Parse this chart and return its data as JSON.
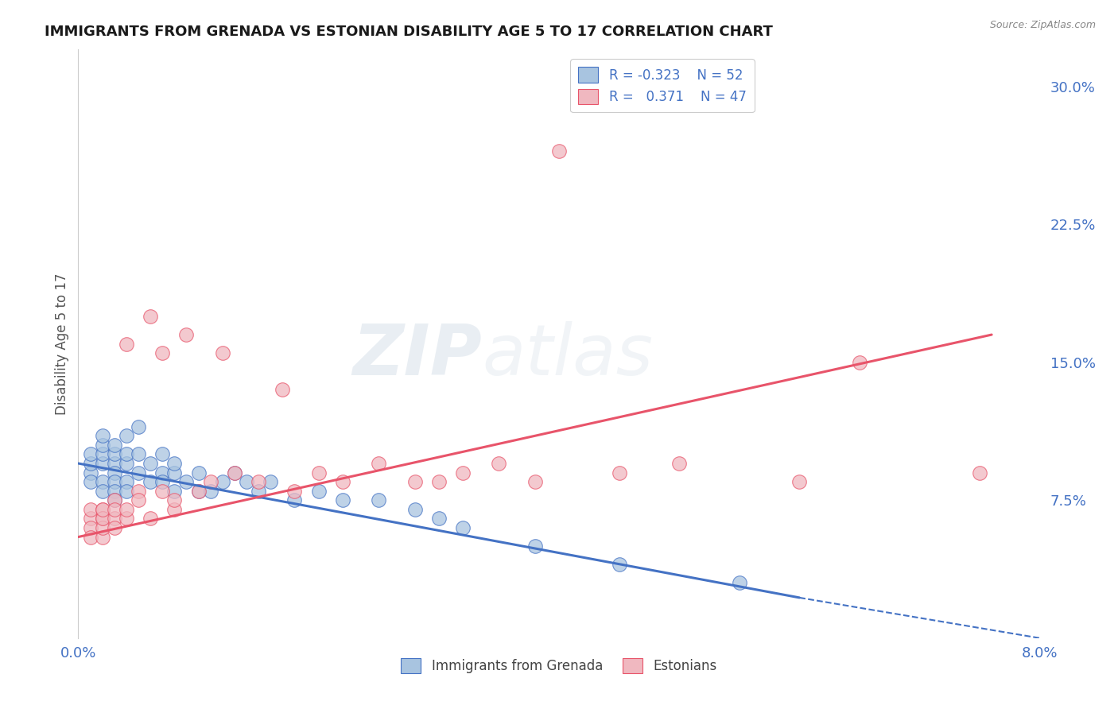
{
  "title": "IMMIGRANTS FROM GRENADA VS ESTONIAN DISABILITY AGE 5 TO 17 CORRELATION CHART",
  "source_text": "Source: ZipAtlas.com",
  "ylabel": "Disability Age 5 to 17",
  "xlim": [
    0.0,
    0.08
  ],
  "ylim": [
    0.0,
    0.32
  ],
  "xtick_positions": [
    0.0,
    0.08
  ],
  "xtick_labels": [
    "0.0%",
    "8.0%"
  ],
  "ytick_values_right": [
    0.075,
    0.15,
    0.225,
    0.3
  ],
  "ytick_labels_right": [
    "7.5%",
    "15.0%",
    "22.5%",
    "30.0%"
  ],
  "blue_R": -0.323,
  "blue_N": 52,
  "pink_R": 0.371,
  "pink_N": 47,
  "blue_scatter_x": [
    0.001,
    0.001,
    0.001,
    0.001,
    0.002,
    0.002,
    0.002,
    0.002,
    0.002,
    0.002,
    0.003,
    0.003,
    0.003,
    0.003,
    0.003,
    0.003,
    0.003,
    0.004,
    0.004,
    0.004,
    0.004,
    0.004,
    0.005,
    0.005,
    0.005,
    0.006,
    0.006,
    0.007,
    0.007,
    0.007,
    0.008,
    0.008,
    0.008,
    0.009,
    0.01,
    0.01,
    0.011,
    0.012,
    0.013,
    0.014,
    0.015,
    0.016,
    0.018,
    0.02,
    0.022,
    0.025,
    0.028,
    0.03,
    0.032,
    0.038,
    0.045,
    0.055
  ],
  "blue_scatter_y": [
    0.09,
    0.095,
    0.1,
    0.085,
    0.095,
    0.1,
    0.085,
    0.08,
    0.105,
    0.11,
    0.095,
    0.09,
    0.085,
    0.1,
    0.08,
    0.075,
    0.105,
    0.095,
    0.085,
    0.1,
    0.11,
    0.08,
    0.09,
    0.1,
    0.115,
    0.085,
    0.095,
    0.09,
    0.1,
    0.085,
    0.09,
    0.08,
    0.095,
    0.085,
    0.09,
    0.08,
    0.08,
    0.085,
    0.09,
    0.085,
    0.08,
    0.085,
    0.075,
    0.08,
    0.075,
    0.075,
    0.07,
    0.065,
    0.06,
    0.05,
    0.04,
    0.03
  ],
  "pink_scatter_x": [
    0.001,
    0.001,
    0.001,
    0.001,
    0.002,
    0.002,
    0.002,
    0.002,
    0.002,
    0.002,
    0.003,
    0.003,
    0.003,
    0.003,
    0.004,
    0.004,
    0.004,
    0.005,
    0.005,
    0.006,
    0.006,
    0.007,
    0.007,
    0.008,
    0.008,
    0.009,
    0.01,
    0.011,
    0.012,
    0.013,
    0.015,
    0.017,
    0.018,
    0.02,
    0.022,
    0.025,
    0.028,
    0.03,
    0.032,
    0.035,
    0.038,
    0.04,
    0.045,
    0.05,
    0.06,
    0.065,
    0.075
  ],
  "pink_scatter_y": [
    0.065,
    0.07,
    0.06,
    0.055,
    0.07,
    0.065,
    0.055,
    0.06,
    0.065,
    0.07,
    0.075,
    0.065,
    0.07,
    0.06,
    0.16,
    0.065,
    0.07,
    0.08,
    0.075,
    0.175,
    0.065,
    0.08,
    0.155,
    0.07,
    0.075,
    0.165,
    0.08,
    0.085,
    0.155,
    0.09,
    0.085,
    0.135,
    0.08,
    0.09,
    0.085,
    0.095,
    0.085,
    0.085,
    0.09,
    0.095,
    0.085,
    0.265,
    0.09,
    0.095,
    0.085,
    0.15,
    0.09
  ],
  "blue_line_x0": 0.0,
  "blue_line_y0": 0.095,
  "blue_line_x1": 0.06,
  "blue_line_y1": 0.022,
  "blue_line_dash_x1": 0.08,
  "blue_line_dash_y1": 0.0,
  "pink_line_x0": 0.0,
  "pink_line_y0": 0.055,
  "pink_line_x1": 0.076,
  "pink_line_y1": 0.165,
  "blue_line_color": "#4472c4",
  "pink_line_color": "#e8546a",
  "scatter_blue_color": "#a8c4e0",
  "scatter_pink_color": "#f0b8c0",
  "watermark_zip": "ZIP",
  "watermark_atlas": "atlas",
  "background_color": "#ffffff",
  "grid_color": "#c8c8c8",
  "tick_color": "#4472c4",
  "label_color": "#555555"
}
